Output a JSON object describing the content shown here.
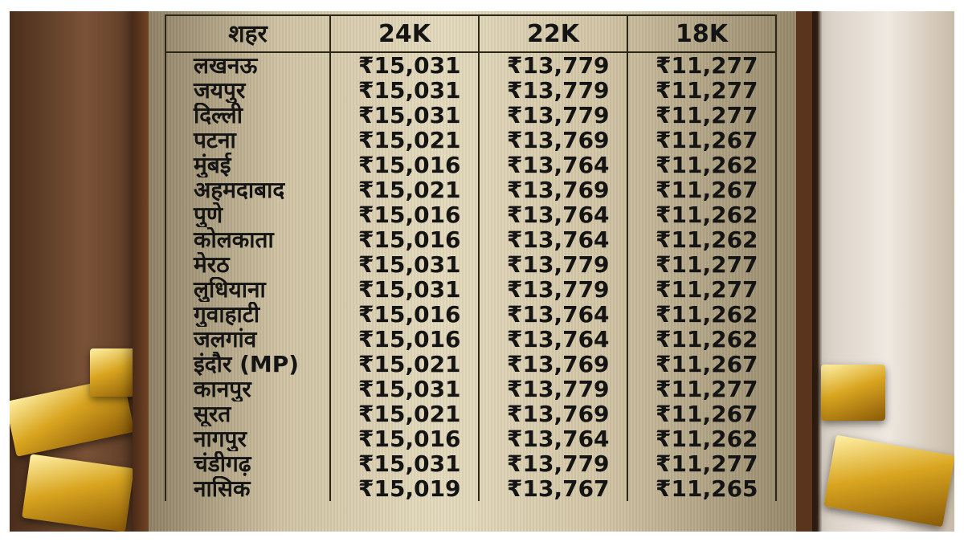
{
  "table": {
    "header": [
      "शहर",
      "24K",
      "22K",
      "18K"
    ],
    "rows": [
      [
        "लखनऊ",
        "₹15,031",
        "₹13,779",
        "₹11,277"
      ],
      [
        "जयपुर",
        "₹15,031",
        "₹13,779",
        "₹11,277"
      ],
      [
        "दिल्ली",
        "₹15,031",
        "₹13,779",
        "₹11,277"
      ],
      [
        "पटना",
        "₹15,021",
        "₹13,769",
        "₹11,267"
      ],
      [
        "मुंबई",
        "₹15,016",
        "₹13,764",
        "₹11,262"
      ],
      [
        "अहमदाबाद",
        "₹15,021",
        "₹13,769",
        "₹11,267"
      ],
      [
        "पुणे",
        "₹15,016",
        "₹13,764",
        "₹11,262"
      ],
      [
        "कोलकाता",
        "₹15,016",
        "₹13,764",
        "₹11,262"
      ],
      [
        "मेरठ",
        "₹15,031",
        "₹13,779",
        "₹11,277"
      ],
      [
        "लुधियाना",
        "₹15,031",
        "₹13,779",
        "₹11,277"
      ],
      [
        "गुवाहाटी",
        "₹15,016",
        "₹13,764",
        "₹11,262"
      ],
      [
        "जलगांव",
        "₹15,016",
        "₹13,764",
        "₹11,262"
      ],
      [
        "इंदौर (MP)",
        "₹15,021",
        "₹13,769",
        "₹11,267"
      ],
      [
        "कानपुर",
        "₹15,031",
        "₹13,779",
        "₹11,277"
      ],
      [
        "सूरत",
        "₹15,021",
        "₹13,769",
        "₹11,267"
      ],
      [
        "नागपुर",
        "₹15,016",
        "₹13,764",
        "₹11,262"
      ],
      [
        "चंडीगढ़",
        "₹15,031",
        "₹13,779",
        "₹11,277"
      ],
      [
        "नासिक",
        "₹15,019",
        "₹13,767",
        "₹11,265"
      ]
    ]
  }
}
